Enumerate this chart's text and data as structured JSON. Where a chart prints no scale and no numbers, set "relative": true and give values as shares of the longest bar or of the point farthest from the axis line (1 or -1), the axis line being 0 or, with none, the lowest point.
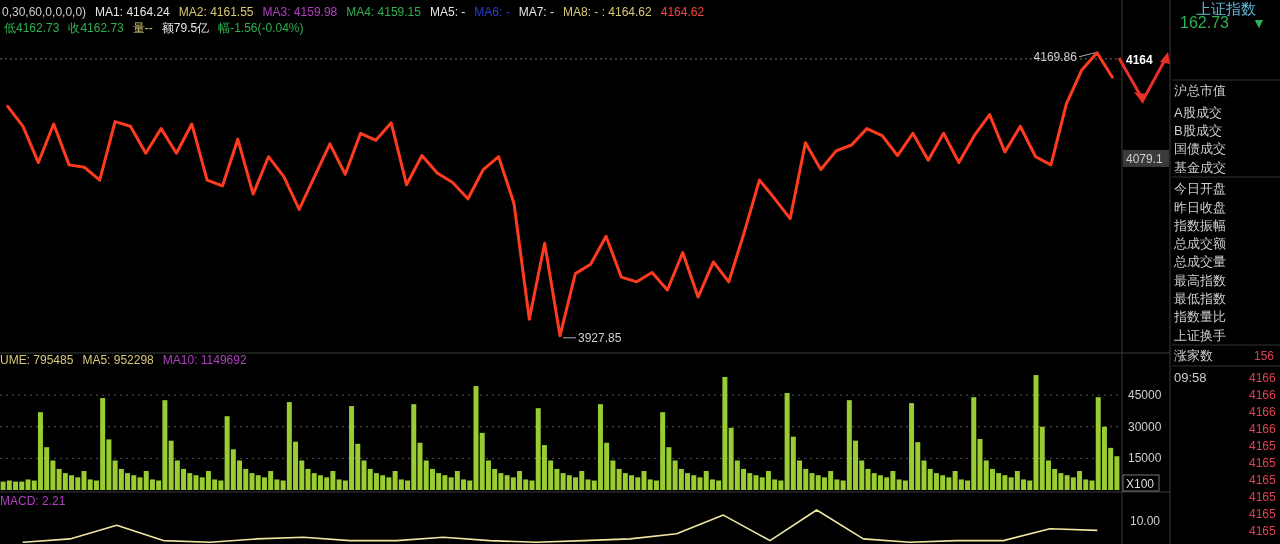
{
  "chart_data": [
    {
      "type": "line",
      "tick_labels": "y",
      "categories": [
        null,
        null,
        null,
        null,
        null,
        null,
        null,
        null,
        null,
        null,
        null,
        null,
        null,
        null,
        null,
        null,
        null,
        null,
        null,
        null,
        null,
        null,
        null,
        null,
        null,
        null,
        null,
        null,
        null,
        null,
        null,
        null,
        null,
        null,
        null,
        null,
        null,
        null,
        null,
        null,
        null,
        null,
        null,
        null,
        null,
        null,
        null,
        null,
        null,
        null,
        null,
        null,
        null,
        null,
        null,
        null,
        null,
        null,
        null,
        null,
        null,
        null,
        null,
        null,
        null,
        null,
        null,
        null,
        null,
        null,
        null,
        null,
        null
      ],
      "series": [
        {
          "color": "#ff3b1f",
          "values": [
            4124,
            4107,
            4076,
            4109,
            4074,
            4072,
            4061,
            4111,
            4107,
            4084,
            4105,
            4084,
            4109,
            4061,
            4056,
            4096,
            4049,
            4081,
            4064,
            4036,
            4064,
            4092,
            4066,
            4101,
            4095,
            4110,
            4057,
            4082,
            4067,
            4059,
            4045,
            4070,
            4081,
            4041,
            3942,
            4007,
            3927.85,
            3981,
            3989,
            4013,
            3978,
            3974,
            3982,
            3967,
            3999,
            3961,
            3991,
            3974,
            4016,
            4061,
            4045,
            4028,
            4093,
            4070,
            4086,
            4091,
            4105,
            4099,
            4082,
            4101,
            4078,
            4101,
            4076,
            4099,
            4117,
            4085,
            4107,
            4081,
            4074,
            4126,
            4155,
            4169.86,
            4149
          ]
        }
      ],
      "ylim": [
        3914,
        4215
      ],
      "yticks": [
        {
          "value": 4164,
          "label": "4164"
        },
        4079.1
      ],
      "ref_lines": [
        {
          "axis": "y",
          "value": 4164.62,
          "line_style": "dotted",
          "color": "#777777"
        }
      ],
      "annotations": [
        "0,30,60,0,0,0,0)",
        "MA1: 4164.24",
        "MA2: 4161.55",
        "MA3: 4159.98",
        "MA4: 4159.15",
        "MA5: -",
        "MA6: -",
        "MA7: -",
        "MA8: - : 4164.62",
        "4164.62",
        "低4162.73",
        "收4162.73",
        "量--",
        "额79.5亿",
        "幅-1.56(-0.04%)",
        "4169.86",
        "3927.85"
      ]
    },
    {
      "type": "bar",
      "tick_labels": "y",
      "grid": "y",
      "categories": [
        null,
        null,
        null,
        null,
        null,
        null,
        null,
        null,
        null,
        null,
        null,
        null,
        null,
        null,
        null,
        null,
        null,
        null,
        null,
        null,
        null,
        null,
        null,
        null,
        null,
        null,
        null,
        null,
        null,
        null,
        null,
        null,
        null,
        null,
        null,
        null,
        null,
        null,
        null,
        null,
        null,
        null,
        null,
        null,
        null,
        null,
        null,
        null,
        null,
        null,
        null,
        null,
        null,
        null,
        null,
        null,
        null,
        null,
        null,
        null,
        null,
        null,
        null,
        null,
        null,
        null,
        null,
        null,
        null,
        null,
        null,
        null,
        null,
        null,
        null,
        null,
        null,
        null,
        null,
        null,
        null,
        null,
        null,
        null,
        null,
        null,
        null,
        null,
        null,
        null,
        null,
        null,
        null,
        null,
        null,
        null,
        null,
        null,
        null,
        null,
        null,
        null,
        null,
        null,
        null,
        null,
        null,
        null,
        null,
        null,
        null,
        null,
        null,
        null,
        null,
        null,
        null,
        null,
        null,
        null,
        null,
        null,
        null,
        null,
        null,
        null,
        null,
        null,
        null,
        null,
        null,
        null,
        null,
        null,
        null,
        null,
        null,
        null,
        null,
        null,
        null,
        null,
        null,
        null,
        null,
        null,
        null,
        null,
        null,
        null,
        null,
        null,
        null,
        null,
        null,
        null,
        null,
        null,
        null,
        null,
        null,
        null,
        null,
        null,
        null,
        null,
        null,
        null,
        null,
        null,
        null,
        null,
        null,
        null,
        null,
        null,
        null,
        null,
        null,
        null
      ],
      "series": [
        {
          "color": "#9acd32",
          "values": [
            4000,
            4500,
            4000,
            4000,
            5000,
            4500,
            36900,
            20300,
            14000,
            10000,
            8000,
            7000,
            6000,
            9000,
            5000,
            4500,
            43600,
            24000,
            14000,
            10000,
            8000,
            7000,
            6000,
            9000,
            5000,
            4500,
            42600,
            23400,
            14000,
            10000,
            8000,
            7000,
            6000,
            9000,
            5000,
            4500,
            35000,
            19300,
            14000,
            10000,
            8000,
            7000,
            6000,
            9000,
            5000,
            4500,
            41700,
            22900,
            14000,
            10000,
            8000,
            7000,
            6000,
            9000,
            5000,
            4500,
            39800,
            21900,
            14000,
            10000,
            8000,
            7000,
            6000,
            9000,
            5000,
            4500,
            40700,
            22400,
            14000,
            10000,
            8000,
            7000,
            6000,
            9000,
            5000,
            4500,
            49300,
            27100,
            14000,
            10000,
            8000,
            7000,
            6000,
            9000,
            5000,
            4500,
            38800,
            21300,
            14000,
            10000,
            8000,
            7000,
            6000,
            9000,
            5000,
            4500,
            40700,
            22400,
            14000,
            10000,
            8000,
            7000,
            6000,
            9000,
            5000,
            4500,
            36900,
            20300,
            14000,
            10000,
            8000,
            7000,
            6000,
            9000,
            5000,
            4500,
            53600,
            29500,
            14000,
            10000,
            8000,
            7000,
            6000,
            9000,
            5000,
            4500,
            46000,
            25300,
            14000,
            10000,
            8000,
            7000,
            6000,
            9000,
            5000,
            4500,
            42600,
            23400,
            14000,
            10000,
            8000,
            7000,
            6000,
            9000,
            5000,
            4500,
            41200,
            22700,
            14000,
            10000,
            8000,
            7000,
            6000,
            9000,
            5000,
            4500,
            44000,
            24200,
            14000,
            10000,
            8000,
            7000,
            6000,
            9000,
            5000,
            4500,
            54500,
            30000,
            14000,
            10000,
            8000,
            7000,
            6000,
            9000,
            5000,
            4500,
            44000,
            30000,
            20000,
            16000
          ]
        }
      ],
      "ylim": [
        0,
        64500
      ],
      "yticks": [
        15000,
        30000,
        45000
      ],
      "annotations": [
        "UME: 795485",
        "MA5: 952298",
        "MA10: 1149692",
        "X100"
      ]
    },
    {
      "type": "line",
      "relative": true,
      "categories": [
        null,
        null,
        null,
        null,
        null,
        null,
        null,
        null,
        null,
        null,
        null,
        null,
        null,
        null,
        null,
        null,
        null,
        null,
        null,
        null,
        null,
        null,
        null,
        null
      ],
      "series": [
        {
          "color": "#f0e6a0",
          "values": [
            0.05,
            0.15,
            0.55,
            0.1,
            0.05,
            0.15,
            0.2,
            0.1,
            0.1,
            0.2,
            0.1,
            0.05,
            0.1,
            0.15,
            0.3,
            0.85,
            0.1,
            1,
            0.15,
            0.05,
            0.1,
            0.1,
            0.45,
            0.4
          ]
        }
      ],
      "annotations": [
        "MACD: 2.21",
        "10.00"
      ]
    },
    {
      "type": "other",
      "title": "上证指数",
      "annotations": [
        "162.73",
        "▼",
        "沪总市值",
        "A股成交",
        "B股成交",
        "国债成交",
        "基金成交",
        "今日开盘",
        "昨日收盘",
        "指数振幅",
        "总成交额",
        "总成交量",
        "最高指数",
        "最低指数",
        "指数量比",
        "上证换手",
        "涨家数",
        "156",
        "09:58",
        "4166",
        "4166",
        "4166",
        "4166",
        "4165",
        "4165",
        "4165",
        "4165",
        "4165",
        "4165"
      ]
    }
  ]
}
